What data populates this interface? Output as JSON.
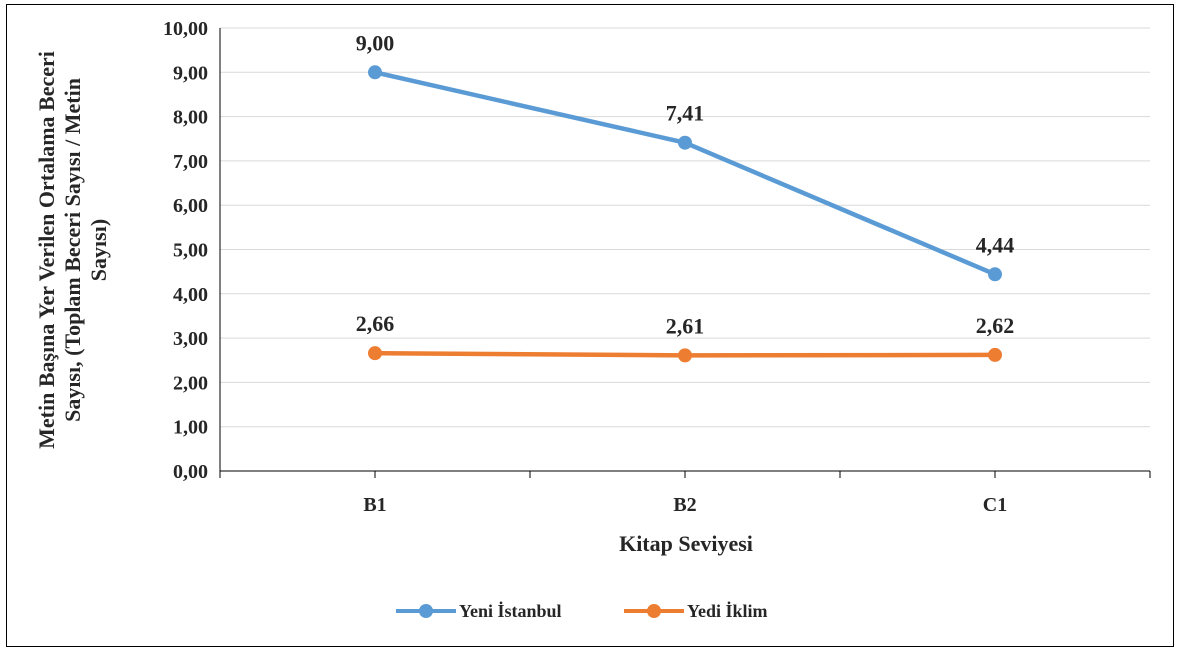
{
  "chart_data": {
    "type": "line",
    "categories": [
      "B1",
      "B2",
      "C1"
    ],
    "series": [
      {
        "name": "Yeni İstanbul",
        "values": [
          9.0,
          7.41,
          4.44
        ],
        "labels": [
          "9,00",
          "7,41",
          "4,44"
        ],
        "color": "#5B9BD5"
      },
      {
        "name": "Yedi İklim",
        "values": [
          2.66,
          2.61,
          2.62
        ],
        "labels": [
          "2,66",
          "2,61",
          "2,62"
        ],
        "color": "#ED7D31"
      }
    ],
    "title": "",
    "xlabel": "Kitap Seviyesi",
    "ylabel_lines": [
      "Metin Başına Yer Verilen Ortalama Beceri",
      "Sayısı,  (Toplam Beceri Sayısı / Metin",
      "Sayısı)"
    ],
    "ylim": [
      0,
      10
    ],
    "yticks": [
      "0,00",
      "1,00",
      "2,00",
      "3,00",
      "4,00",
      "5,00",
      "6,00",
      "7,00",
      "8,00",
      "9,00",
      "10,00"
    ],
    "grid": true,
    "legend_position": "bottom",
    "gridline_color": "#d9d9d9",
    "axis_color": "#000000"
  }
}
